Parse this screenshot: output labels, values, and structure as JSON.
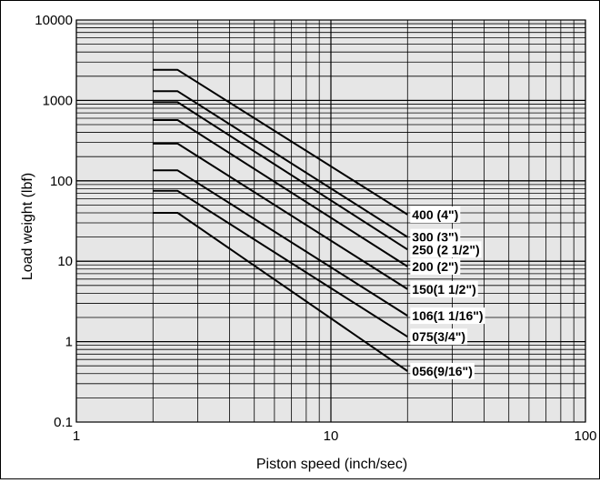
{
  "chart_data": {
    "type": "line",
    "title": "",
    "xlabel": "Piston speed (inch/sec)",
    "ylabel": "Load weight (lbf)",
    "xscale": "log",
    "yscale": "log",
    "xlim": [
      1,
      100
    ],
    "ylim": [
      0.1,
      10000
    ],
    "grid": true,
    "plot_background": "#e6e6e6",
    "line_color": "#000000",
    "x_ticks": [
      {
        "value": 1,
        "label": "1"
      },
      {
        "value": 10,
        "label": "10"
      },
      {
        "value": 100,
        "label": "100"
      }
    ],
    "y_ticks": [
      {
        "value": 0.1,
        "label": "0.1"
      },
      {
        "value": 1,
        "label": "1"
      },
      {
        "value": 10,
        "label": "10"
      },
      {
        "value": 100,
        "label": "100"
      },
      {
        "value": 1000,
        "label": "1000"
      },
      {
        "value": 10000,
        "label": "10000"
      }
    ],
    "series": [
      {
        "name": "400 (4\")",
        "points": [
          [
            2,
            2400
          ],
          [
            2.5,
            2400
          ],
          [
            20,
            38
          ]
        ]
      },
      {
        "name": "300 (3\")",
        "points": [
          [
            2,
            1300
          ],
          [
            2.5,
            1300
          ],
          [
            20,
            20
          ]
        ]
      },
      {
        "name": "250 (2 1/2\")",
        "points": [
          [
            2,
            950
          ],
          [
            2.5,
            950
          ],
          [
            20,
            14
          ]
        ]
      },
      {
        "name": "200 (2\")",
        "points": [
          [
            2,
            570
          ],
          [
            2.5,
            570
          ],
          [
            20,
            8.6
          ]
        ]
      },
      {
        "name": "150(1 1/2\")",
        "points": [
          [
            2,
            290
          ],
          [
            2.5,
            290
          ],
          [
            20,
            4.5
          ]
        ]
      },
      {
        "name": "106(1 1/16\")",
        "points": [
          [
            2,
            135
          ],
          [
            2.5,
            135
          ],
          [
            20,
            2.1
          ]
        ]
      },
      {
        "name": "075(3/4\")",
        "points": [
          [
            2,
            75
          ],
          [
            2.5,
            75
          ],
          [
            20,
            1.15
          ]
        ]
      },
      {
        "name": "056(9/16\")",
        "points": [
          [
            2,
            40
          ],
          [
            2.5,
            40
          ],
          [
            20,
            0.43
          ]
        ]
      }
    ]
  }
}
